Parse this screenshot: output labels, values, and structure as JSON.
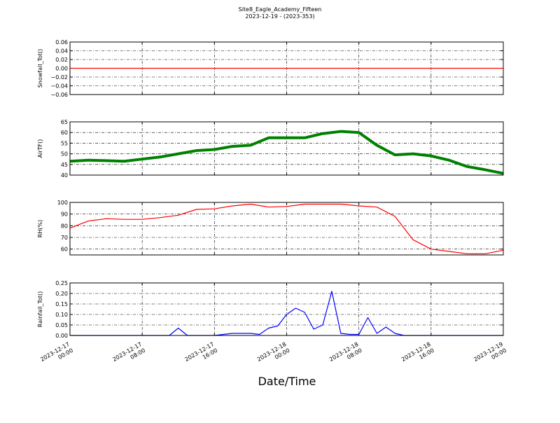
{
  "title": "Site8_Eagle_Academy_Fifteen",
  "subtitle": "2023-12-19 - (2023-353)",
  "x_label": "Date/Time",
  "chart_data": [
    {
      "type": "line",
      "y_label": "Snowfall_Tot()",
      "color": "#ff0000",
      "grid": true,
      "x": [
        "2023-12-17 00:00",
        "2023-12-19 00:00"
      ],
      "values": [
        0,
        0
      ],
      "xlim": [
        "2023-12-17 00:00",
        "2023-12-19 00:00"
      ],
      "ylim": [
        -0.06,
        0.06
      ],
      "yticks": [
        {
          "value": -0.06,
          "label": "−0.06"
        },
        {
          "value": -0.04,
          "label": "−0.04"
        },
        {
          "value": -0.02,
          "label": "−0.02"
        },
        {
          "value": 0,
          "label": "0.00"
        },
        {
          "value": 0.02,
          "label": "0.02"
        },
        {
          "value": 0.04,
          "label": "0.04"
        },
        {
          "value": 0.06,
          "label": "0.06"
        }
      ]
    },
    {
      "type": "line",
      "y_label": "AirTF()",
      "color": "#008000",
      "grid": true,
      "x": [
        "2023-12-17 00:00",
        "2023-12-17 02:00",
        "2023-12-17 04:00",
        "2023-12-17 06:00",
        "2023-12-17 08:00",
        "2023-12-17 10:00",
        "2023-12-17 12:00",
        "2023-12-17 14:00",
        "2023-12-17 16:00",
        "2023-12-17 18:00",
        "2023-12-17 20:00",
        "2023-12-17 22:00",
        "2023-12-18 00:00",
        "2023-12-18 02:00",
        "2023-12-18 04:00",
        "2023-12-18 06:00",
        "2023-12-18 08:00",
        "2023-12-18 10:00",
        "2023-12-18 12:00",
        "2023-12-18 14:00",
        "2023-12-18 16:00",
        "2023-12-18 18:00",
        "2023-12-18 20:00",
        "2023-12-18 22:00",
        "2023-12-19 00:00"
      ],
      "values": [
        46.5,
        47,
        46.8,
        46.5,
        47.5,
        48.5,
        50,
        51.5,
        52,
        53.5,
        54,
        57.5,
        57.5,
        57.5,
        59.5,
        60.5,
        60,
        54,
        49.5,
        50,
        49,
        47,
        44,
        42.5,
        40.8
      ],
      "xlim": [
        "2023-12-17 00:00",
        "2023-12-19 00:00"
      ],
      "ylim": [
        40,
        65
      ],
      "yticks": [
        40,
        45,
        50,
        55,
        60,
        65
      ]
    },
    {
      "type": "line",
      "y_label": "RH(%)",
      "color": "#ff0000",
      "grid": true,
      "x": [
        "2023-12-17 00:00",
        "2023-12-17 02:00",
        "2023-12-17 04:00",
        "2023-12-17 06:00",
        "2023-12-17 08:00",
        "2023-12-17 10:00",
        "2023-12-17 12:00",
        "2023-12-17 14:00",
        "2023-12-17 16:00",
        "2023-12-17 18:00",
        "2023-12-17 20:00",
        "2023-12-17 22:00",
        "2023-12-18 00:00",
        "2023-12-18 02:00",
        "2023-12-18 04:00",
        "2023-12-18 06:00",
        "2023-12-18 08:00",
        "2023-12-18 10:00",
        "2023-12-18 12:00",
        "2023-12-18 14:00",
        "2023-12-18 16:00",
        "2023-12-18 18:00",
        "2023-12-18 20:00",
        "2023-12-18 22:00",
        "2023-12-19 00:00"
      ],
      "values": [
        78,
        84,
        86,
        85.5,
        85.5,
        87,
        89,
        94,
        94.5,
        97,
        98.5,
        96,
        96.5,
        98.5,
        98.5,
        98.5,
        97,
        96,
        88,
        68,
        60,
        58,
        56,
        56,
        59
      ],
      "xlim": [
        "2023-12-17 00:00",
        "2023-12-19 00:00"
      ],
      "ylim": [
        55,
        100
      ],
      "yticks": [
        60,
        70,
        80,
        90,
        100
      ]
    },
    {
      "type": "line",
      "y_label": "Rainfall_Tot()",
      "color": "#0000ff",
      "grid": true,
      "x": [
        "2023-12-17 00:00",
        "2023-12-17 01:00",
        "2023-12-17 02:00",
        "2023-12-17 03:00",
        "2023-12-17 04:00",
        "2023-12-17 05:00",
        "2023-12-17 06:00",
        "2023-12-17 07:00",
        "2023-12-17 08:00",
        "2023-12-17 09:00",
        "2023-12-17 10:00",
        "2023-12-17 11:00",
        "2023-12-17 12:00",
        "2023-12-17 13:00",
        "2023-12-17 14:00",
        "2023-12-17 15:00",
        "2023-12-17 16:00",
        "2023-12-17 17:00",
        "2023-12-17 18:00",
        "2023-12-17 19:00",
        "2023-12-17 20:00",
        "2023-12-17 21:00",
        "2023-12-17 22:00",
        "2023-12-17 23:00",
        "2023-12-18 00:00",
        "2023-12-18 01:00",
        "2023-12-18 02:00",
        "2023-12-18 03:00",
        "2023-12-18 04:00",
        "2023-12-18 05:00",
        "2023-12-18 06:00",
        "2023-12-18 07:00",
        "2023-12-18 08:00",
        "2023-12-18 09:00",
        "2023-12-18 10:00",
        "2023-12-18 11:00",
        "2023-12-18 12:00",
        "2023-12-18 13:00",
        "2023-12-18 14:00",
        "2023-12-18 15:00",
        "2023-12-18 16:00",
        "2023-12-18 17:00",
        "2023-12-18 18:00",
        "2023-12-18 19:00",
        "2023-12-18 20:00",
        "2023-12-18 21:00",
        "2023-12-18 22:00",
        "2023-12-18 23:00",
        "2023-12-19 00:00"
      ],
      "values": [
        0,
        0,
        0,
        0,
        0,
        0,
        0,
        0,
        0,
        0,
        0,
        0,
        0.035,
        0,
        0,
        0,
        0,
        0.005,
        0.01,
        0.01,
        0.01,
        0.005,
        0.035,
        0.045,
        0.1,
        0.13,
        0.11,
        0.03,
        0.05,
        0.21,
        0.01,
        0.005,
        0.005,
        0.085,
        0.01,
        0.04,
        0.01,
        0,
        0,
        0,
        0,
        0,
        0,
        0,
        0,
        0,
        0,
        0,
        0
      ],
      "xlim": [
        "2023-12-17 00:00",
        "2023-12-19 00:00"
      ],
      "ylim": [
        0,
        0.25
      ],
      "yticks": [
        {
          "value": 0,
          "label": "0.00"
        },
        {
          "value": 0.05,
          "label": "0.05"
        },
        {
          "value": 0.1,
          "label": "0.10"
        },
        {
          "value": 0.15,
          "label": "0.15"
        },
        {
          "value": 0.2,
          "label": "0.20"
        },
        {
          "value": 0.25,
          "label": "0.25"
        }
      ],
      "xticks": [
        "2023-12-17 00:00",
        "2023-12-17 08:00",
        "2023-12-17 16:00",
        "2023-12-18 00:00",
        "2023-12-18 08:00",
        "2023-12-18 16:00",
        "2023-12-19 00:00"
      ]
    }
  ]
}
